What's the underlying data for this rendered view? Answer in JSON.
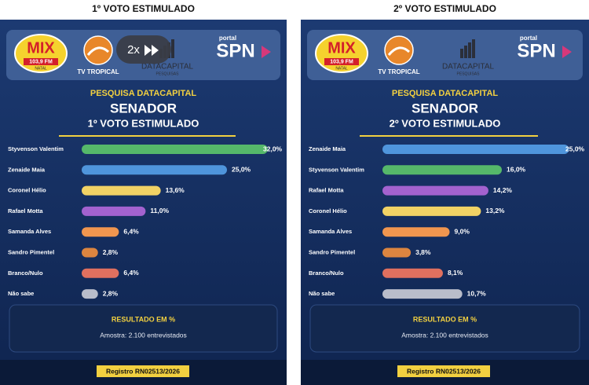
{
  "panels": [
    {
      "heading": "1º VOTO ESTIMULADO",
      "logos": {
        "mix": "MIX",
        "mix_freq": "103,9 FM",
        "mix_city": "NATAL",
        "tv": "TV TROPICAL",
        "datacapital": "DATACAPITAL",
        "datacapital_sub": "PESQUISAS",
        "portal": "portal",
        "spn": "SPN"
      },
      "result_title": "RESULTADO EM %",
      "sample": "Amostra: 2.100 entrevistados",
      "registry": "Registro RN02513/2026"
    },
    {
      "heading": "2º VOTO ESTIMULADO",
      "logos": {
        "mix": "MIX",
        "mix_freq": "103,9 FM",
        "mix_city": "NATAL",
        "tv": "TV TROPICAL",
        "datacapital": "DATACAPITAL",
        "datacapital_sub": "PESQUISAS",
        "portal": "portal",
        "spn": "SPN"
      },
      "result_title": "RESULTADO EM %",
      "sample": "Amostra: 2.100 entrevistados",
      "registry": "Registro RN02513/2026"
    }
  ],
  "overlay": {
    "speed": "2x"
  },
  "chart_data": [
    {
      "type": "bar",
      "orientation": "horizontal",
      "kicker": "PESQUISA DATACAPITAL",
      "title": "SENADOR",
      "subtitle": "1º VOTO ESTIMULADO",
      "categories": [
        "Styvenson Valentim",
        "Zenaide Maia",
        "Coronel Hélio",
        "Rafael Motta",
        "Samanda Alves",
        "Sandro Pimentel",
        "Branco/Nulo",
        "Não sabe"
      ],
      "values": [
        32.0,
        25.0,
        13.6,
        11.0,
        6.4,
        2.8,
        6.4,
        2.8
      ],
      "value_labels": [
        "32,0%",
        "25,0%",
        "13,6%",
        "11,0%",
        "6,4%",
        "2,8%",
        "6,4%",
        "2,8%"
      ],
      "colors": [
        "#55b86a",
        "#4f95dc",
        "#f1d265",
        "#a362cf",
        "#f0964f",
        "#dc8540",
        "#e0705f",
        "#b9bdca"
      ]
    },
    {
      "type": "bar",
      "orientation": "horizontal",
      "kicker": "PESQUISA DATACAPITAL",
      "title": "SENADOR",
      "subtitle": "2º VOTO ESTIMULADO",
      "categories": [
        "Zenaide Maia",
        "Styvenson Valentim",
        "Rafael Motta",
        "Coronel Hélio",
        "Samanda Alves",
        "Sandro Pimentel",
        "Branco/Nulo",
        "Não sabe"
      ],
      "values": [
        25.0,
        16.0,
        14.2,
        13.2,
        9.0,
        3.8,
        8.1,
        10.7
      ],
      "value_labels": [
        "25,0%",
        "16,0%",
        "14,2%",
        "13,2%",
        "9,0%",
        "3,8%",
        "8,1%",
        "10,7%"
      ],
      "colors": [
        "#4f95dc",
        "#55b86a",
        "#a362cf",
        "#f1d265",
        "#f0964f",
        "#dc8540",
        "#e0705f",
        "#b9bdca"
      ]
    }
  ]
}
